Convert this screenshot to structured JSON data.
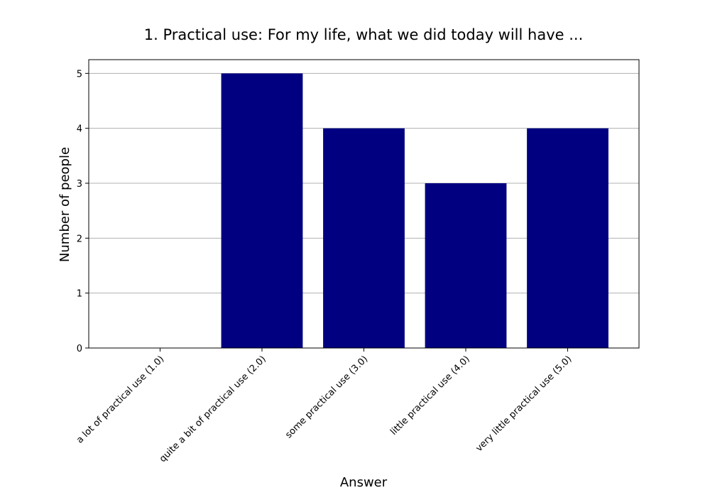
{
  "chart_data": {
    "type": "bar",
    "title": "1. Practical use: For my life, what we did today will have ...",
    "xlabel": "Answer",
    "ylabel": "Number of people",
    "categories": [
      "a lot of practical use (1.0)",
      "quite a bit of practical use (2.0)",
      "some practical use (3.0)",
      "little practical use (4.0)",
      "very little practical use (5.0)"
    ],
    "values": [
      0,
      5,
      4,
      3,
      4
    ],
    "yticks": [
      "0",
      "1",
      "2",
      "3",
      "4",
      "5"
    ],
    "ylim": [
      0,
      5.25
    ],
    "grid": "y-major",
    "bar_color": "#000080",
    "grid_color": "#b0b0b0"
  }
}
